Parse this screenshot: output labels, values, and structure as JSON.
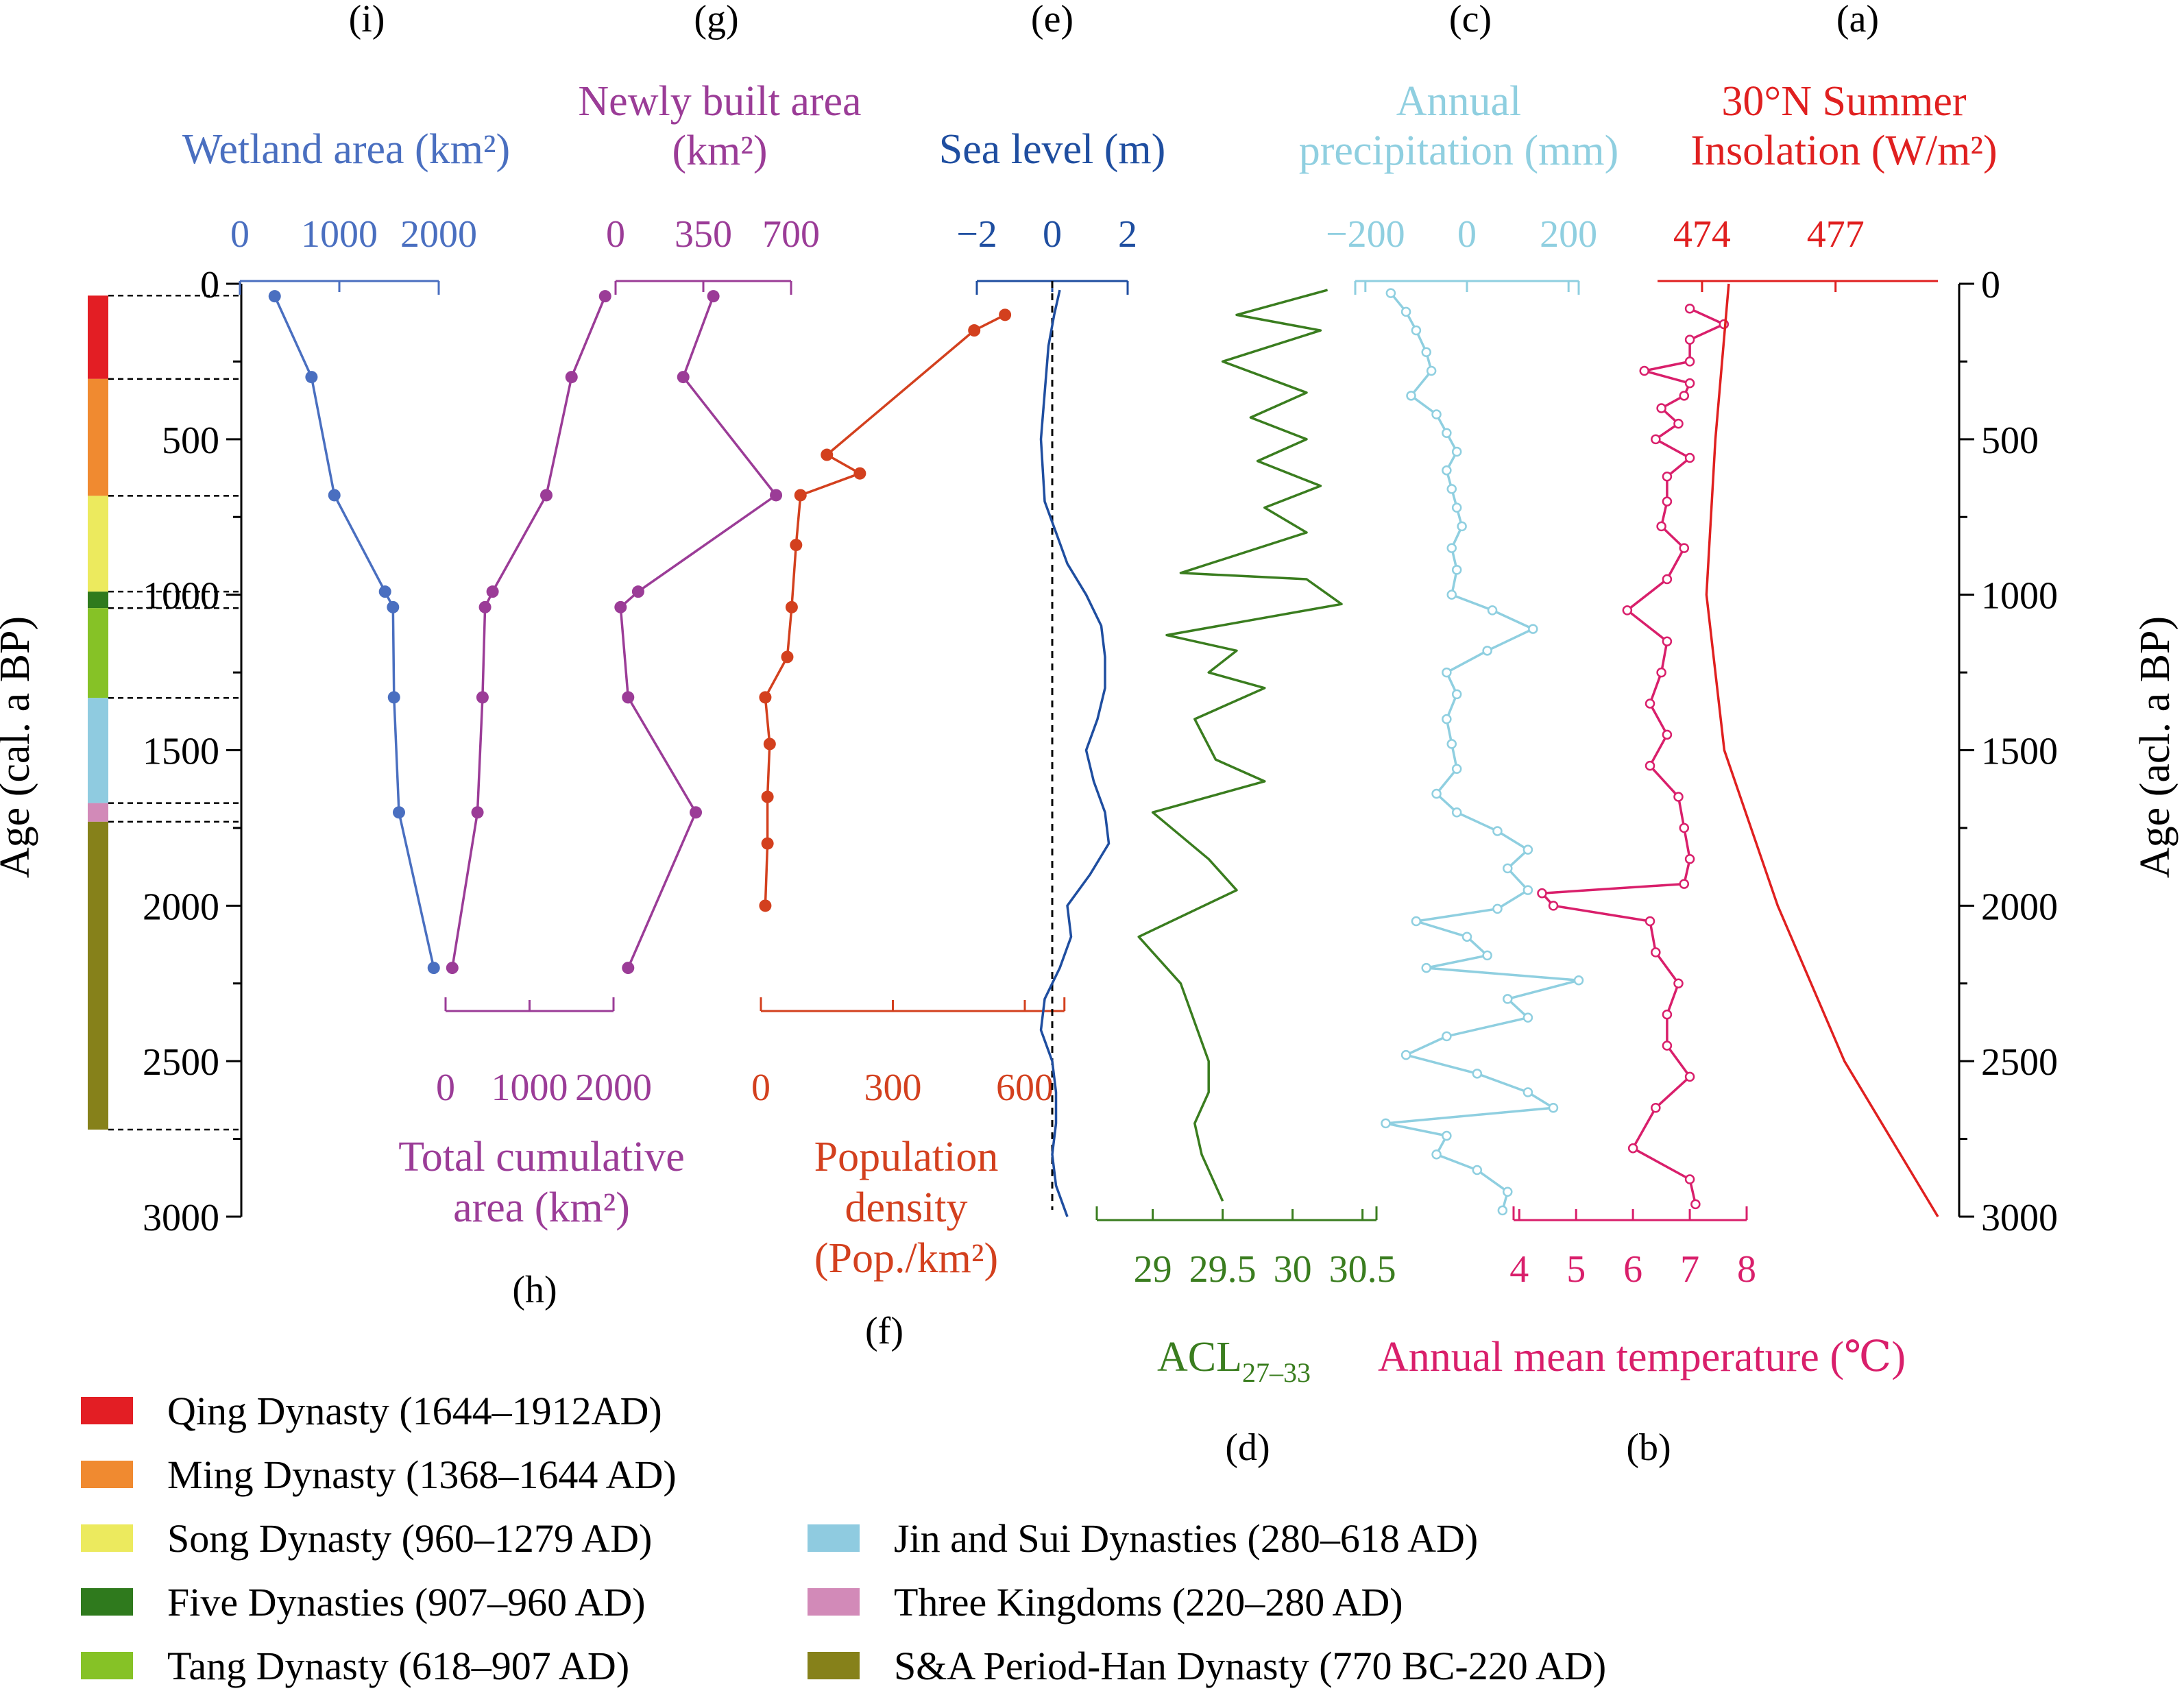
{
  "axes": {
    "left_ylabel": "Age (cal. a BP)",
    "right_ylabel": "Age (acl. a BP)",
    "age_ticks": [
      0,
      500,
      1000,
      1500,
      2000,
      2500,
      3000
    ],
    "age_range": [
      0,
      3000
    ]
  },
  "colors": {
    "wetland": "#4a6fc0",
    "built": "#9b3c97",
    "population": "#d3401e",
    "sealevel": "#1f4ea0",
    "acl": "#3a7d1f",
    "precip": "#8fcfe0",
    "temperature": "#d91f6b",
    "insolation": "#e02020"
  },
  "dynasty_bar": [
    {
      "name": "Qing",
      "from": 38,
      "to": 306,
      "color": "#e31e24"
    },
    {
      "name": "Ming",
      "from": 306,
      "to": 682,
      "color": "#f08a30"
    },
    {
      "name": "Song",
      "from": 682,
      "to": 990,
      "color": "#ecea5e"
    },
    {
      "name": "Five",
      "from": 990,
      "to": 1043,
      "color": "#2f7a1d"
    },
    {
      "name": "Tang",
      "from": 1043,
      "to": 1332,
      "color": "#86c226"
    },
    {
      "name": "JinSui",
      "from": 1332,
      "to": 1670,
      "color": "#8fcbe0"
    },
    {
      "name": "ThreeKingdoms",
      "from": 1670,
      "to": 1730,
      "color": "#d28ab8"
    },
    {
      "name": "SAHan",
      "from": 1730,
      "to": 2720,
      "color": "#86811a"
    }
  ],
  "legend": [
    {
      "label": "Qing Dynasty (1644–1912AD)",
      "color": "#e31e24"
    },
    {
      "label": "Ming Dynasty (1368–1644 AD)",
      "color": "#f08a30"
    },
    {
      "label": "Song Dynasty (960–1279 AD)",
      "color": "#ecea5e"
    },
    {
      "label": "Five Dynasties (907–960 AD)",
      "color": "#2f7a1d"
    },
    {
      "label": "Tang Dynasty (618–907 AD)",
      "color": "#86c226"
    },
    {
      "label": "Jin and Sui Dynasties (280–618 AD)",
      "color": "#8fcbe0"
    },
    {
      "label": "Three Kingdoms (220–280 AD)",
      "color": "#d28ab8"
    },
    {
      "label": "S&A Period-Han Dynasty (770 BC-220 AD)",
      "color": "#86811a"
    }
  ],
  "chart_data": [
    {
      "id": "i",
      "type": "line",
      "panel_letter": "(i)",
      "title_lines": [
        "Wetland area (km²)"
      ],
      "color_key": "wetland",
      "xlim": [
        0,
        2000
      ],
      "ticks": [
        0,
        1000,
        2000
      ],
      "tick_labels": [
        "0",
        "1000",
        "2000"
      ],
      "points": [
        {
          "age": 40,
          "value": 350
        },
        {
          "age": 300,
          "value": 720
        },
        {
          "age": 680,
          "value": 950
        },
        {
          "age": 990,
          "value": 1460
        },
        {
          "age": 1040,
          "value": 1540
        },
        {
          "age": 1330,
          "value": 1550
        },
        {
          "age": 1700,
          "value": 1600
        },
        {
          "age": 2200,
          "value": 1950
        }
      ]
    },
    {
      "id": "h",
      "type": "line",
      "panel_letter": "(h)",
      "title_lines": [
        "Total cumulative",
        "area (km²)"
      ],
      "color_key": "built",
      "xlim": [
        0,
        2000
      ],
      "ticks": [
        0,
        1000,
        2000
      ],
      "tick_labels": [
        "0",
        "1000",
        "2000"
      ],
      "points": [
        {
          "age": 40,
          "value": 1900
        },
        {
          "age": 300,
          "value": 1500
        },
        {
          "age": 680,
          "value": 1200
        },
        {
          "age": 990,
          "value": 560
        },
        {
          "age": 1040,
          "value": 470
        },
        {
          "age": 1330,
          "value": 440
        },
        {
          "age": 1700,
          "value": 380
        },
        {
          "age": 2200,
          "value": 80
        }
      ]
    },
    {
      "id": "g",
      "type": "line",
      "panel_letter": "(g)",
      "title_lines": [
        "Newly built area",
        "(km²)"
      ],
      "color_key": "built",
      "xlim": [
        0,
        700
      ],
      "ticks": [
        0,
        350,
        700
      ],
      "tick_labels": [
        "0",
        "350",
        "700"
      ],
      "points": [
        {
          "age": 40,
          "value": 390
        },
        {
          "age": 300,
          "value": 270
        },
        {
          "age": 680,
          "value": 640
        },
        {
          "age": 990,
          "value": 90
        },
        {
          "age": 1040,
          "value": 20
        },
        {
          "age": 1330,
          "value": 50
        },
        {
          "age": 1700,
          "value": 320
        },
        {
          "age": 2200,
          "value": 50
        }
      ]
    },
    {
      "id": "f",
      "type": "line",
      "panel_letter": "(f)",
      "title_lines": [
        "Population",
        "density",
        "(Pop./km²)"
      ],
      "color_key": "population",
      "xlim": [
        0,
        600
      ],
      "ticks": [
        0,
        300,
        600
      ],
      "tick_labels": [
        "0",
        "300",
        "600"
      ],
      "points": [
        {
          "age": 100,
          "value": 555
        },
        {
          "age": 150,
          "value": 485
        },
        {
          "age": 550,
          "value": 150
        },
        {
          "age": 610,
          "value": 225
        },
        {
          "age": 680,
          "value": 90
        },
        {
          "age": 840,
          "value": 80
        },
        {
          "age": 1040,
          "value": 70
        },
        {
          "age": 1200,
          "value": 60
        },
        {
          "age": 1330,
          "value": 10
        },
        {
          "age": 1480,
          "value": 20
        },
        {
          "age": 1650,
          "value": 15
        },
        {
          "age": 1800,
          "value": 15
        },
        {
          "age": 2000,
          "value": 10
        }
      ]
    },
    {
      "id": "e",
      "type": "line",
      "panel_letter": "(e)",
      "title_lines": [
        "Sea level (m)"
      ],
      "color_key": "sealevel",
      "xlim": [
        -2,
        2
      ],
      "ticks": [
        -2,
        0,
        2
      ],
      "tick_labels": [
        "−2",
        "0",
        "2"
      ],
      "reference_value": 0,
      "points": [
        {
          "age": 20,
          "value": 0.2
        },
        {
          "age": 100,
          "value": 0.05
        },
        {
          "age": 200,
          "value": -0.1
        },
        {
          "age": 350,
          "value": -0.2
        },
        {
          "age": 500,
          "value": -0.3
        },
        {
          "age": 700,
          "value": -0.2
        },
        {
          "age": 800,
          "value": 0.1
        },
        {
          "age": 900,
          "value": 0.4
        },
        {
          "age": 1000,
          "value": 0.9
        },
        {
          "age": 1100,
          "value": 1.3
        },
        {
          "age": 1200,
          "value": 1.4
        },
        {
          "age": 1300,
          "value": 1.4
        },
        {
          "age": 1400,
          "value": 1.2
        },
        {
          "age": 1500,
          "value": 0.9
        },
        {
          "age": 1600,
          "value": 1.1
        },
        {
          "age": 1700,
          "value": 1.4
        },
        {
          "age": 1800,
          "value": 1.5
        },
        {
          "age": 1900,
          "value": 1.0
        },
        {
          "age": 2000,
          "value": 0.4
        },
        {
          "age": 2100,
          "value": 0.5
        },
        {
          "age": 2200,
          "value": 0.2
        },
        {
          "age": 2300,
          "value": -0.2
        },
        {
          "age": 2400,
          "value": -0.3
        },
        {
          "age": 2500,
          "value": 0.0
        },
        {
          "age": 2600,
          "value": 0.1
        },
        {
          "age": 2700,
          "value": 0.1
        },
        {
          "age": 2800,
          "value": 0.0
        },
        {
          "age": 2900,
          "value": 0.1
        },
        {
          "age": 3000,
          "value": 0.4
        }
      ]
    },
    {
      "id": "d",
      "type": "line",
      "panel_letter": "(d)",
      "title_lines": [],
      "bottom_label": "ACL",
      "bottom_label_sub": "27–33",
      "color_key": "acl",
      "xlim": [
        28.6,
        30.6
      ],
      "ticks": [
        29,
        29.5,
        30,
        30.5
      ],
      "tick_labels": [
        "29",
        "29.5",
        "30",
        "30.5"
      ],
      "points": [
        {
          "age": 20,
          "value": 30.25
        },
        {
          "age": 100,
          "value": 29.6
        },
        {
          "age": 150,
          "value": 30.2
        },
        {
          "age": 250,
          "value": 29.5
        },
        {
          "age": 350,
          "value": 30.1
        },
        {
          "age": 430,
          "value": 29.7
        },
        {
          "age": 500,
          "value": 30.1
        },
        {
          "age": 570,
          "value": 29.75
        },
        {
          "age": 650,
          "value": 30.2
        },
        {
          "age": 720,
          "value": 29.8
        },
        {
          "age": 800,
          "value": 30.1
        },
        {
          "age": 930,
          "value": 29.2
        },
        {
          "age": 950,
          "value": 30.1
        },
        {
          "age": 1030,
          "value": 30.35
        },
        {
          "age": 1130,
          "value": 29.1
        },
        {
          "age": 1180,
          "value": 29.6
        },
        {
          "age": 1250,
          "value": 29.4
        },
        {
          "age": 1300,
          "value": 29.8
        },
        {
          "age": 1400,
          "value": 29.3
        },
        {
          "age": 1530,
          "value": 29.45
        },
        {
          "age": 1600,
          "value": 29.8
        },
        {
          "age": 1700,
          "value": 29.0
        },
        {
          "age": 1850,
          "value": 29.4
        },
        {
          "age": 1950,
          "value": 29.6
        },
        {
          "age": 2100,
          "value": 28.9
        },
        {
          "age": 2250,
          "value": 29.2
        },
        {
          "age": 2500,
          "value": 29.4
        },
        {
          "age": 2600,
          "value": 29.4
        },
        {
          "age": 2700,
          "value": 29.3
        },
        {
          "age": 2800,
          "value": 29.35
        },
        {
          "age": 2950,
          "value": 29.5
        }
      ]
    },
    {
      "id": "c",
      "type": "line",
      "panel_letter": "(c)",
      "title_lines": [
        "Annual",
        "precipitation (mm)"
      ],
      "color_key": "precip",
      "xlim": [
        -220,
        220
      ],
      "ticks": [
        -200,
        0,
        200
      ],
      "tick_labels": [
        "−200",
        "0",
        "200"
      ],
      "points": [
        {
          "age": 30,
          "value": -150
        },
        {
          "age": 90,
          "value": -120
        },
        {
          "age": 150,
          "value": -100
        },
        {
          "age": 220,
          "value": -80
        },
        {
          "age": 280,
          "value": -70
        },
        {
          "age": 360,
          "value": -110
        },
        {
          "age": 420,
          "value": -60
        },
        {
          "age": 480,
          "value": -40
        },
        {
          "age": 540,
          "value": -20
        },
        {
          "age": 600,
          "value": -40
        },
        {
          "age": 660,
          "value": -30
        },
        {
          "age": 720,
          "value": -20
        },
        {
          "age": 780,
          "value": -10
        },
        {
          "age": 850,
          "value": -30
        },
        {
          "age": 920,
          "value": -20
        },
        {
          "age": 1000,
          "value": -30
        },
        {
          "age": 1050,
          "value": 50
        },
        {
          "age": 1110,
          "value": 130
        },
        {
          "age": 1180,
          "value": 40
        },
        {
          "age": 1250,
          "value": -40
        },
        {
          "age": 1320,
          "value": -20
        },
        {
          "age": 1400,
          "value": -40
        },
        {
          "age": 1480,
          "value": -30
        },
        {
          "age": 1560,
          "value": -20
        },
        {
          "age": 1640,
          "value": -60
        },
        {
          "age": 1700,
          "value": -20
        },
        {
          "age": 1760,
          "value": 60
        },
        {
          "age": 1820,
          "value": 120
        },
        {
          "age": 1880,
          "value": 80
        },
        {
          "age": 1950,
          "value": 120
        },
        {
          "age": 2010,
          "value": 60
        },
        {
          "age": 2050,
          "value": -100
        },
        {
          "age": 2100,
          "value": 0
        },
        {
          "age": 2160,
          "value": 40
        },
        {
          "age": 2200,
          "value": -80
        },
        {
          "age": 2240,
          "value": 220
        },
        {
          "age": 2300,
          "value": 80
        },
        {
          "age": 2360,
          "value": 120
        },
        {
          "age": 2420,
          "value": -40
        },
        {
          "age": 2480,
          "value": -120
        },
        {
          "age": 2540,
          "value": 20
        },
        {
          "age": 2600,
          "value": 120
        },
        {
          "age": 2650,
          "value": 170
        },
        {
          "age": 2700,
          "value": -160
        },
        {
          "age": 2740,
          "value": -40
        },
        {
          "age": 2800,
          "value": -60
        },
        {
          "age": 2850,
          "value": 20
        },
        {
          "age": 2920,
          "value": 80
        },
        {
          "age": 2980,
          "value": 70
        }
      ]
    },
    {
      "id": "b",
      "type": "line",
      "panel_letter": "(b)",
      "title_lines": [],
      "bottom_label": "Annual mean temperature (℃)",
      "color_key": "temperature",
      "xlim": [
        3.9,
        8.0
      ],
      "ticks": [
        4,
        5,
        6,
        7,
        8
      ],
      "tick_labels": [
        "4",
        "5",
        "6",
        "7",
        "8"
      ],
      "points": [
        {
          "age": 80,
          "value": 7.0
        },
        {
          "age": 130,
          "value": 7.6
        },
        {
          "age": 180,
          "value": 7.0
        },
        {
          "age": 250,
          "value": 7.0
        },
        {
          "age": 280,
          "value": 6.2
        },
        {
          "age": 320,
          "value": 7.0
        },
        {
          "age": 360,
          "value": 6.9
        },
        {
          "age": 400,
          "value": 6.5
        },
        {
          "age": 450,
          "value": 6.8
        },
        {
          "age": 500,
          "value": 6.4
        },
        {
          "age": 560,
          "value": 7.0
        },
        {
          "age": 620,
          "value": 6.6
        },
        {
          "age": 700,
          "value": 6.6
        },
        {
          "age": 780,
          "value": 6.5
        },
        {
          "age": 850,
          "value": 6.9
        },
        {
          "age": 950,
          "value": 6.6
        },
        {
          "age": 1050,
          "value": 5.9
        },
        {
          "age": 1150,
          "value": 6.6
        },
        {
          "age": 1250,
          "value": 6.5
        },
        {
          "age": 1350,
          "value": 6.3
        },
        {
          "age": 1450,
          "value": 6.6
        },
        {
          "age": 1550,
          "value": 6.3
        },
        {
          "age": 1650,
          "value": 6.8
        },
        {
          "age": 1750,
          "value": 6.9
        },
        {
          "age": 1850,
          "value": 7.0
        },
        {
          "age": 1930,
          "value": 6.9
        },
        {
          "age": 1960,
          "value": 4.4
        },
        {
          "age": 2000,
          "value": 4.6
        },
        {
          "age": 2050,
          "value": 6.3
        },
        {
          "age": 2150,
          "value": 6.4
        },
        {
          "age": 2250,
          "value": 6.8
        },
        {
          "age": 2350,
          "value": 6.6
        },
        {
          "age": 2450,
          "value": 6.6
        },
        {
          "age": 2550,
          "value": 7.0
        },
        {
          "age": 2650,
          "value": 6.4
        },
        {
          "age": 2780,
          "value": 6.0
        },
        {
          "age": 2880,
          "value": 7.0
        },
        {
          "age": 2960,
          "value": 7.1
        }
      ]
    },
    {
      "id": "a",
      "type": "line",
      "panel_letter": "(a)",
      "title_lines": [
        "30°N Summer",
        "Insolation (W/m²)"
      ],
      "color_key": "insolation",
      "xlim": [
        473,
        479.5
      ],
      "ticks": [
        474,
        477
      ],
      "tick_labels": [
        "474",
        "477"
      ],
      "points": [
        {
          "age": 0,
          "value": 474.6
        },
        {
          "age": 500,
          "value": 474.3
        },
        {
          "age": 1000,
          "value": 474.1
        },
        {
          "age": 1500,
          "value": 474.5
        },
        {
          "age": 2000,
          "value": 475.7
        },
        {
          "age": 2500,
          "value": 477.2
        },
        {
          "age": 3000,
          "value": 479.3
        }
      ]
    }
  ]
}
